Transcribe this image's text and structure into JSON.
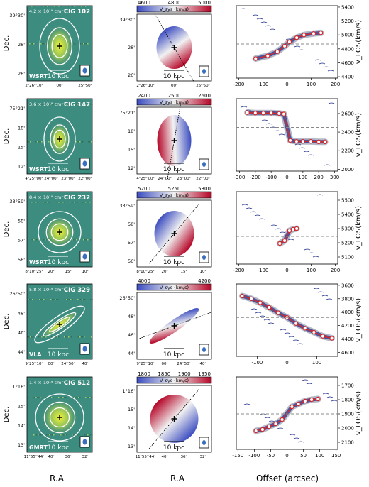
{
  "colors": {
    "map_bg": "#3d8c80",
    "map_bright": "#e8ef3a",
    "contour": "#ffffff",
    "vel_low": "#3b4cc0",
    "vel_mid": "#f2f2f2",
    "vel_high": "#b40426",
    "pv_contour": "#1c2b8a",
    "pv_gray": "#7a7f99",
    "pv_point": "#d62728",
    "dashed": "#888888"
  },
  "axis_labels": {
    "dec": "Dec.",
    "ra_left": "R.A",
    "ra_mid": "R.A",
    "offset": "Offset (arcsec)",
    "vlos": "v_LOS(km/s)",
    "vsys": "V_sys (km/s)",
    "kpc": "10 kpc"
  },
  "rows": [
    {
      "cig": "CIG 102",
      "telescope": "WSRT",
      "column_density": "4.2 × 10¹⁹ cm⁻²",
      "dec_ticks": [
        "39°30'",
        "28'",
        "26'"
      ],
      "ra_ticks": [
        "2ʰ26ᵐ10ˢ",
        "00ˢ",
        "25ᵐ50ˢ"
      ],
      "cbar_ticks": [
        "4600",
        "4800",
        "5000"
      ],
      "vel_angle": 60,
      "vel_flip": false,
      "pv_x_ticks": [
        "-200",
        "-100",
        "0",
        "100",
        "200"
      ],
      "pv_y_ticks": [
        "5400",
        "5200",
        "5000",
        "4800",
        "4600",
        "4400"
      ],
      "pv_v_range": [
        4380,
        5420
      ],
      "pv_x_range": [
        -210,
        210
      ],
      "pv_vsys": 4870,
      "pv_curve": [
        [
          -130,
          4660
        ],
        [
          -80,
          4700
        ],
        [
          -40,
          4760
        ],
        [
          -10,
          4840
        ],
        [
          10,
          4900
        ],
        [
          40,
          4960
        ],
        [
          70,
          5000
        ],
        [
          110,
          5020
        ],
        [
          140,
          5030
        ]
      ]
    },
    {
      "cig": "CIG 147",
      "telescope": "WSRT",
      "column_density": "3.6 × 10¹⁹ cm⁻²",
      "dec_ticks": [
        "75°21'",
        "18'",
        "15'",
        "12'"
      ],
      "ra_ticks": [
        "4ʰ25ᵐ00ˢ",
        "24ᵐ00ˢ",
        "23ᵐ00ˢ",
        "22ᵐ00ˢ"
      ],
      "cbar_ticks": [
        "2400",
        "2500",
        "2600"
      ],
      "vel_angle": -5,
      "vel_flip": true,
      "pv_x_ticks": [
        "-300",
        "-200",
        "-100",
        "0",
        "100",
        "200",
        "300"
      ],
      "pv_y_ticks": [
        "2600",
        "2400",
        "2200",
        "2000"
      ],
      "pv_v_range": [
        1980,
        2760
      ],
      "pv_x_range": [
        -320,
        320
      ],
      "pv_vsys": 2450,
      "pv_curve": [
        [
          -250,
          2610
        ],
        [
          -200,
          2605
        ],
        [
          -150,
          2605
        ],
        [
          -100,
          2605
        ],
        [
          -50,
          2600
        ],
        [
          -20,
          2595
        ],
        [
          20,
          2310
        ],
        [
          60,
          2300
        ],
        [
          100,
          2300
        ],
        [
          150,
          2300
        ],
        [
          200,
          2295
        ],
        [
          240,
          2295
        ]
      ]
    },
    {
      "cig": "CIG 232",
      "telescope": "WSRT",
      "column_density": "8.4 × 10¹⁹ cm⁻²",
      "dec_ticks": [
        "33°59'",
        "58'",
        "57'",
        "56'"
      ],
      "ra_ticks": [
        "8ʰ10ᵐ25ˢ",
        "20ˢ",
        "15ˢ",
        "10ˢ"
      ],
      "cbar_ticks": [
        "5200",
        "5250",
        "5300"
      ],
      "vel_angle": 40,
      "vel_flip": false,
      "pv_x_ticks": [
        "-200",
        "-100",
        "0",
        "100",
        "200"
      ],
      "pv_y_ticks": [
        "5500",
        "5400",
        "5300",
        "5200",
        "5100"
      ],
      "pv_v_range": [
        5050,
        5560
      ],
      "pv_x_range": [
        -210,
        210
      ],
      "pv_vsys": 5245,
      "pv_curve": [
        [
          -30,
          5195
        ],
        [
          -10,
          5215
        ],
        [
          10,
          5285
        ],
        [
          25,
          5295
        ],
        [
          40,
          5300
        ]
      ]
    },
    {
      "cig": "CIG 329",
      "telescope": "VLA",
      "column_density": "5.8 × 10¹⁹ cm⁻²",
      "dec_ticks": [
        "26°50'",
        "48'",
        "46'",
        "44'"
      ],
      "ra_ticks": [
        "9ʰ25ᵐ10ˢ",
        "00ˢ",
        "24ᵐ50ˢ",
        "40ˢ"
      ],
      "cbar_ticks": [
        "4000",
        "4200"
      ],
      "vel_angle": -25,
      "vel_flip": true,
      "pv_x_ticks": [
        "-100",
        "0",
        "100"
      ],
      "pv_y_ticks": [
        "3600",
        "3800",
        "4000",
        "4200",
        "4400",
        "4600"
      ],
      "pv_v_range": [
        3580,
        4660
      ],
      "pv_x_range": [
        -170,
        170
      ],
      "pv_vsys": 4080,
      "pv_y_inverted": true,
      "pv_curve": [
        [
          -150,
          3760
        ],
        [
          -120,
          3800
        ],
        [
          -90,
          3860
        ],
        [
          -60,
          3930
        ],
        [
          -30,
          4010
        ],
        [
          0,
          4080
        ],
        [
          30,
          4170
        ],
        [
          60,
          4240
        ],
        [
          90,
          4300
        ],
        [
          120,
          4360
        ],
        [
          150,
          4390
        ]
      ]
    },
    {
      "cig": "CIG 512",
      "telescope": "GMRT",
      "column_density": "1.4 × 10¹⁹ cm⁻²",
      "dec_ticks": [
        "1°16'",
        "15'",
        "14'",
        "13'"
      ],
      "ra_ticks": [
        "11ʰ55ᵐ44ˢ",
        "40ˢ",
        "36ˢ",
        "32ˢ"
      ],
      "cbar_ticks": [
        "1800",
        "1850",
        "1900",
        "1950"
      ],
      "vel_angle": 45,
      "vel_flip": true,
      "pv_x_ticks": [
        "-150",
        "-100",
        "-50",
        "0",
        "50",
        "100",
        "150"
      ],
      "pv_y_ticks": [
        "1700",
        "1800",
        "1900",
        "2000",
        "2100"
      ],
      "pv_v_range": [
        1640,
        2150
      ],
      "pv_x_range": [
        -155,
        155
      ],
      "pv_vsys": 1900,
      "pv_y_inverted": true,
      "pv_curve": [
        [
          -95,
          2020
        ],
        [
          -75,
          2010
        ],
        [
          -55,
          1990
        ],
        [
          -35,
          1970
        ],
        [
          -15,
          1940
        ],
        [
          15,
          1850
        ],
        [
          35,
          1830
        ],
        [
          55,
          1810
        ],
        [
          75,
          1800
        ],
        [
          95,
          1795
        ]
      ]
    }
  ],
  "chart_data": [
    {
      "type": "scatter",
      "title": "CIG 102",
      "xlabel": "Offset (arcsec)",
      "ylabel": "v_LOS(km/s)",
      "xlim": [
        -210,
        210
      ],
      "ylim": [
        4380,
        5420
      ],
      "x": [
        -130,
        -80,
        -40,
        -10,
        10,
        40,
        70,
        110,
        140
      ],
      "y": [
        4660,
        4700,
        4760,
        4840,
        4900,
        4960,
        5000,
        5020,
        5030
      ]
    },
    {
      "type": "scatter",
      "title": "CIG 147",
      "xlabel": "Offset (arcsec)",
      "ylabel": "v_LOS(km/s)",
      "xlim": [
        -320,
        320
      ],
      "ylim": [
        1980,
        2760
      ],
      "x": [
        -250,
        -200,
        -150,
        -100,
        -50,
        -20,
        20,
        60,
        100,
        150,
        200,
        240
      ],
      "y": [
        2610,
        2605,
        2605,
        2605,
        2600,
        2595,
        2310,
        2300,
        2300,
        2300,
        2295,
        2295
      ]
    },
    {
      "type": "scatter",
      "title": "CIG 232",
      "xlabel": "Offset (arcsec)",
      "ylabel": "v_LOS(km/s)",
      "xlim": [
        -210,
        210
      ],
      "ylim": [
        5050,
        5560
      ],
      "x": [
        -30,
        -10,
        10,
        25,
        40
      ],
      "y": [
        5195,
        5215,
        5285,
        5295,
        5300
      ]
    },
    {
      "type": "scatter",
      "title": "CIG 329",
      "xlabel": "Offset (arcsec)",
      "ylabel": "v_LOS(km/s)",
      "xlim": [
        -170,
        170
      ],
      "ylim": [
        3580,
        4660
      ],
      "x": [
        -150,
        -120,
        -90,
        -60,
        -30,
        0,
        30,
        60,
        90,
        120,
        150
      ],
      "y": [
        3760,
        3800,
        3860,
        3930,
        4010,
        4080,
        4170,
        4240,
        4300,
        4360,
        4390
      ]
    },
    {
      "type": "scatter",
      "title": "CIG 512",
      "xlabel": "Offset (arcsec)",
      "ylabel": "v_LOS(km/s)",
      "xlim": [
        -155,
        155
      ],
      "ylim": [
        1640,
        2150
      ],
      "x": [
        -95,
        -75,
        -55,
        -35,
        -15,
        15,
        35,
        55,
        75,
        95
      ],
      "y": [
        2020,
        2010,
        1990,
        1970,
        1940,
        1850,
        1830,
        1810,
        1800,
        1795
      ]
    }
  ]
}
